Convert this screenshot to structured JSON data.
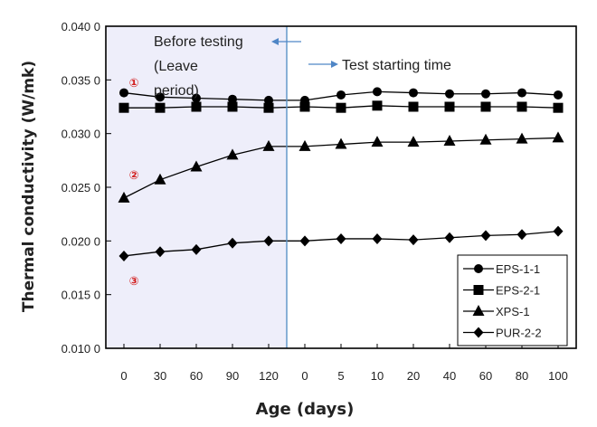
{
  "chart_data": {
    "type": "line",
    "xlabel": "Age (days)",
    "ylabel": "Thermal conductivity (W/mk)",
    "categories": [
      "0",
      "30",
      "60",
      "90",
      "120",
      "0",
      "5",
      "10",
      "20",
      "40",
      "60",
      "80",
      "100"
    ],
    "ylim": [
      0.01,
      0.04
    ],
    "yticks": [
      "0.010 0",
      "0.015 0",
      "0.020 0",
      "0.025 0",
      "0.030 0",
      "0.035 0",
      "0.040 0"
    ],
    "grid": false,
    "legend_position": "bottom-right",
    "series": [
      {
        "name": "EPS-1-1",
        "marker": "circle",
        "values": [
          0.0338,
          0.0334,
          0.0333,
          0.0332,
          0.0331,
          0.0331,
          0.0336,
          0.0339,
          0.0338,
          0.0337,
          0.0337,
          0.0338,
          0.0336
        ]
      },
      {
        "name": "EPS-2-1",
        "marker": "square",
        "values": [
          0.0324,
          0.0324,
          0.0325,
          0.0325,
          0.0324,
          0.0325,
          0.0324,
          0.0326,
          0.0325,
          0.0325,
          0.0325,
          0.0325,
          0.0324
        ]
      },
      {
        "name": "XPS-1",
        "marker": "triangle",
        "values": [
          0.024,
          0.0257,
          0.0269,
          0.028,
          0.0288,
          0.0288,
          0.029,
          0.0292,
          0.0292,
          0.0293,
          0.0294,
          0.0295,
          0.0296
        ]
      },
      {
        "name": "PUR-2-2",
        "marker": "diamond",
        "values": [
          0.0186,
          0.019,
          0.0192,
          0.0198,
          0.02,
          0.02,
          0.0202,
          0.0202,
          0.0201,
          0.0203,
          0.0205,
          0.0206,
          0.0209
        ]
      }
    ],
    "annotations": {
      "before_line1": "Before testing",
      "before_line2": "(Leave",
      "before_line3": "period)",
      "after": "Test starting time",
      "circle_labels": [
        "①",
        "②",
        "③"
      ]
    },
    "colors": {
      "shade": "#eeeefa",
      "divider": "#5b93c7",
      "arrow": "#4f86c6",
      "series": "#000000",
      "circle_label": "#d21f1f"
    }
  }
}
